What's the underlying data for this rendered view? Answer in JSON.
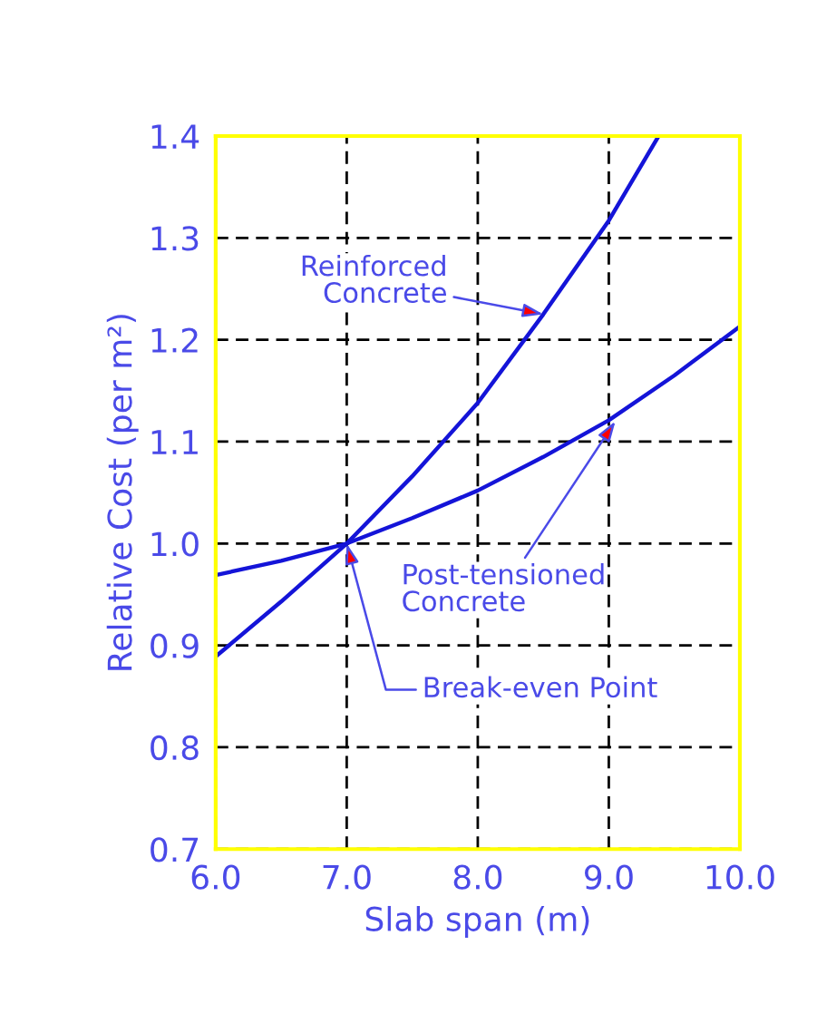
{
  "chart_data": {
    "type": "line",
    "xlabel": "Slab span (m)",
    "ylabel": "Relative Cost (per m²)",
    "xlim": [
      6.0,
      10.0
    ],
    "ylim": [
      0.7,
      1.4
    ],
    "xticks": [
      {
        "value": 6,
        "label": "6.0"
      },
      {
        "value": 7,
        "label": "7.0"
      },
      {
        "value": 8,
        "label": "8.0"
      },
      {
        "value": 9,
        "label": "9.0"
      },
      {
        "value": 10,
        "label": "10.0"
      }
    ],
    "yticks": [
      0.7,
      0.8,
      0.9,
      {
        "value": 1,
        "label": "1.0"
      },
      1.1,
      1.2,
      1.3,
      1.4
    ],
    "grid": true,
    "line_style": "solid",
    "marker": "none",
    "series": [
      {
        "color": "#1414d8",
        "x": [
          6.0,
          6.5,
          7.0,
          7.5,
          8.0,
          8.5,
          9.0,
          9.38
        ],
        "values": [
          0.889,
          0.943,
          1.0,
          1.066,
          1.138,
          1.225,
          1.317,
          1.4
        ]
      },
      {
        "color": "#1414d8",
        "x": [
          6.0,
          6.5,
          7.0,
          7.5,
          8.0,
          8.5,
          9.0,
          9.5,
          10.0
        ],
        "values": [
          0.969,
          0.983,
          1.0,
          1.025,
          1.052,
          1.085,
          1.121,
          1.165,
          1.213
        ]
      }
    ],
    "annotations": [
      {
        "text": "Reinforced\nConcrete",
        "x": 8.5,
        "y": 1.225
      },
      {
        "text": "Post-tensioned\nConcrete",
        "x": 9.05,
        "y": 1.12
      },
      {
        "text": "Break-even Point",
        "x": 7.0,
        "y": 1.0
      }
    ]
  }
}
